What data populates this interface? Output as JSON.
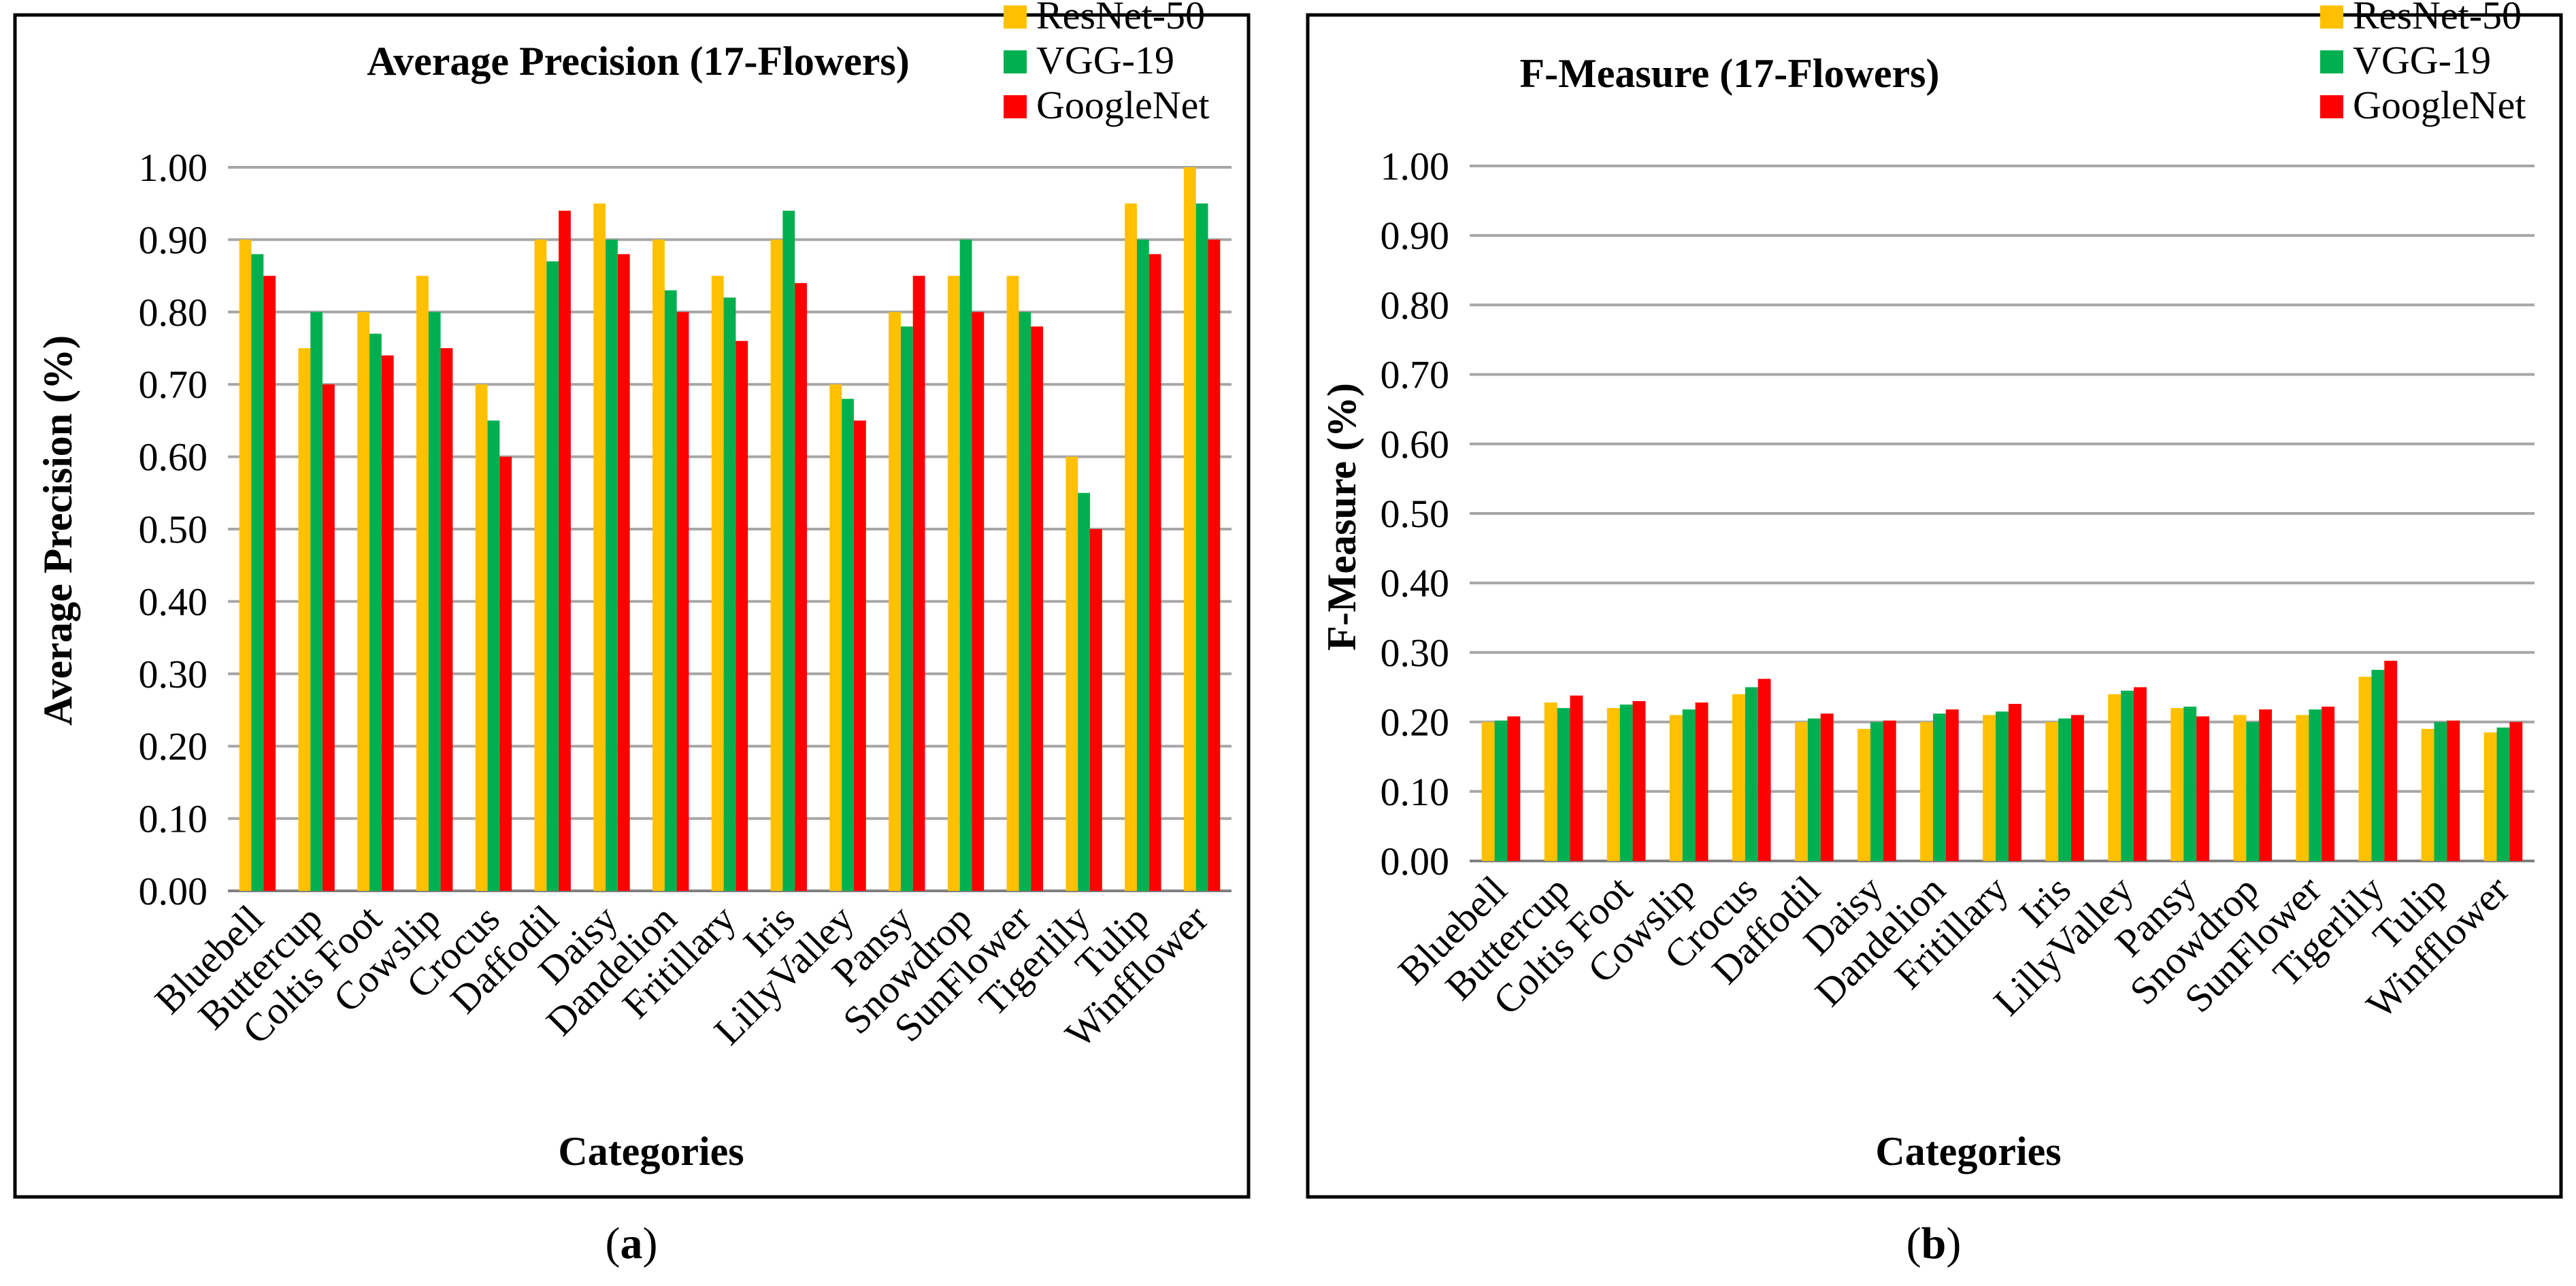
{
  "panel_labels": [
    {
      "open": "(",
      "letter": "a",
      "close": ")"
    },
    {
      "open": "(",
      "letter": "b",
      "close": ")"
    }
  ],
  "colors": {
    "ResNet-50": "#FFC000",
    "VGG-19": "#00B050",
    "GoogleNet": "#FF0000",
    "grid": "#a6a6a6",
    "frame": "#000000"
  },
  "chart_data": [
    {
      "type": "bar",
      "title": "Average Precision (17-Flowers)",
      "xlabel": "Categories",
      "ylabel": "Average Precision (%)",
      "ylim": [
        0,
        1
      ],
      "yticks": [
        "0.00",
        "0.10",
        "0.20",
        "0.30",
        "0.40",
        "0.50",
        "0.60",
        "0.70",
        "0.80",
        "0.90",
        "1.00"
      ],
      "grid": true,
      "legend_position": "top-right",
      "categories": [
        "Bluebell",
        "Buttercup",
        "Coltis Foot",
        "Cowslip",
        "Crocus",
        "Daffodil",
        "Daisy",
        "Dandelion",
        "Fritillary",
        "Iris",
        "LillyValley",
        "Pansy",
        "Snowdrop",
        "SunFlower",
        "Tigerlily",
        "Tulip",
        "Winfflower"
      ],
      "series": [
        {
          "name": "ResNet-50",
          "values": [
            0.9,
            0.75,
            0.8,
            0.85,
            0.7,
            0.9,
            0.95,
            0.9,
            0.85,
            0.9,
            0.7,
            0.8,
            0.85,
            0.85,
            0.6,
            0.95,
            1.0
          ]
        },
        {
          "name": "VGG-19",
          "values": [
            0.88,
            0.8,
            0.77,
            0.8,
            0.65,
            0.87,
            0.9,
            0.83,
            0.82,
            0.94,
            0.68,
            0.78,
            0.9,
            0.8,
            0.55,
            0.9,
            0.95
          ]
        },
        {
          "name": "GoogleNet",
          "values": [
            0.85,
            0.7,
            0.74,
            0.75,
            0.6,
            0.94,
            0.88,
            0.8,
            0.76,
            0.84,
            0.65,
            0.85,
            0.8,
            0.78,
            0.5,
            0.88,
            0.9
          ]
        }
      ]
    },
    {
      "type": "bar",
      "title": "F-Measure (17-Flowers)",
      "xlabel": "Categories",
      "ylabel": "F-Measure (%)",
      "ylim": [
        0,
        1
      ],
      "yticks": [
        "0.00",
        "0.10",
        "0.20",
        "0.30",
        "0.40",
        "0.50",
        "0.60",
        "0.70",
        "0.80",
        "0.90",
        "1.00"
      ],
      "grid": true,
      "legend_position": "top-right",
      "categories": [
        "Bluebell",
        "Buttercup",
        "Coltis Foot",
        "Cowslip",
        "Crocus",
        "Daffodil",
        "Daisy",
        "Dandelion",
        "Fritillary",
        "Iris",
        "LillyValley",
        "Pansy",
        "Snowdrop",
        "SunFlower",
        "Tigerlily",
        "Tulip",
        "Winfflower"
      ],
      "series": [
        {
          "name": "ResNet-50",
          "values": [
            0.2,
            0.228,
            0.22,
            0.21,
            0.24,
            0.2,
            0.19,
            0.2,
            0.21,
            0.2,
            0.24,
            0.22,
            0.21,
            0.21,
            0.265,
            0.19,
            0.185
          ]
        },
        {
          "name": "VGG-19",
          "values": [
            0.202,
            0.22,
            0.225,
            0.218,
            0.25,
            0.205,
            0.2,
            0.212,
            0.215,
            0.205,
            0.245,
            0.222,
            0.2,
            0.218,
            0.275,
            0.2,
            0.192
          ]
        },
        {
          "name": "GoogleNet",
          "values": [
            0.208,
            0.238,
            0.23,
            0.228,
            0.262,
            0.212,
            0.202,
            0.218,
            0.226,
            0.21,
            0.25,
            0.208,
            0.218,
            0.222,
            0.288,
            0.202,
            0.2
          ]
        }
      ]
    }
  ]
}
